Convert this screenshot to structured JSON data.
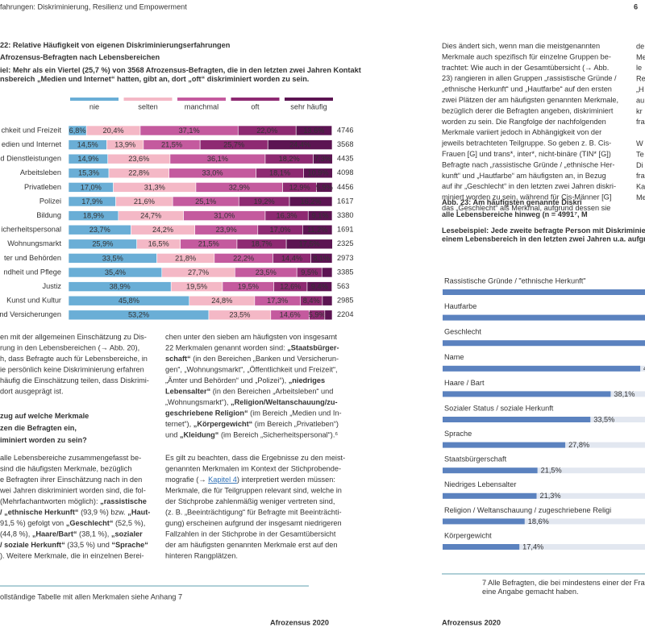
{
  "header": {
    "left": "fahrungen: Diskriminierung, Resilienz und Empowerment",
    "page": "6"
  },
  "figure22": {
    "type": "bar",
    "orientation": "horizontal",
    "stacked": true,
    "title_lines": [
      "22: Relative Häufigkeit von eigenen Diskriminierungserfahrungen",
      "Afrozensus-Befragten nach Lebensbereichen"
    ],
    "subtitle_lines": [
      "iel: Mehr als ein Viertel (25,7 %) von 3568 Afrozensus-Befragten, die in den letzten zwei Jahren Kontakt",
      "nsbereich „Medien und Internet“ hatten, gibt an, dort „oft“ diskriminiert worden zu sein."
    ],
    "categories": [
      "chkeit und Freizeit",
      "edien und Internet",
      "d Dienstleistungen",
      "Arbeitsleben",
      "Privatleben",
      "Polizei",
      "Bildung",
      "icherheitspersonal",
      "Wohnungsmarkt",
      "ter und Behörden",
      "ndheit und Pflege",
      "Justiz",
      "Kunst und Kultur",
      "nd Versicherungen"
    ],
    "n": [
      4746,
      3568,
      4435,
      4098,
      4456,
      1617,
      3380,
      1691,
      2325,
      2973,
      3385,
      563,
      2985,
      2204
    ],
    "series": [
      {
        "name": "nie",
        "color": "#6aaed6",
        "label_color": "#1d2f40",
        "values": [
          6.8,
          14.5,
          14.9,
          15.3,
          17.0,
          17.9,
          18.9,
          23.7,
          25.9,
          33.5,
          35.4,
          38.9,
          45.8,
          53.2
        ],
        "value_labels": [
          "6,8%",
          "14,5%",
          "14,9%",
          "15,3%",
          "17,0%",
          "17,9%",
          "18,9%",
          "23,7%",
          "25,9%",
          "33,5%",
          "35,4%",
          "38,9%",
          "45,8%",
          "53,2%"
        ]
      },
      {
        "name": "selten",
        "color": "#f4b8c6",
        "label_color": "#3a2030",
        "values": [
          20.4,
          13.9,
          23.6,
          22.8,
          31.3,
          21.6,
          24.7,
          24.2,
          16.5,
          21.8,
          27.7,
          19.5,
          24.8,
          23.5
        ],
        "value_labels": [
          "20,4%",
          "13,9%",
          "23,6%",
          "22,8%",
          "31,3%",
          "21,6%",
          "24,7%",
          "24,2%",
          "16,5%",
          "21,8%",
          "27,7%",
          "19,5%",
          "24,8%",
          "23,5%"
        ]
      },
      {
        "name": "manchmal",
        "color": "#c45a9e",
        "label_color": "#3a1030",
        "values": [
          37.1,
          21.5,
          36.1,
          33.0,
          32.9,
          25.1,
          31.0,
          23.9,
          21.5,
          22.2,
          23.5,
          19.5,
          17.3,
          14.6
        ],
        "value_labels": [
          "37,1%",
          "21,5%",
          "36,1%",
          "33,0%",
          "32,9%",
          "25,1%",
          "31,0%",
          "23,9%",
          "21,5%",
          "22,2%",
          "23,5%",
          "19,5%",
          "17,3%",
          "14,6%"
        ]
      },
      {
        "name": "oft",
        "color": "#8e2a72",
        "label_color": "#ffffff",
        "values": [
          22.0,
          25.7,
          18.2,
          18.1,
          12.9,
          19.2,
          16.3,
          17.0,
          18.7,
          14.4,
          9.5,
          12.6,
          8.4,
          5.9
        ],
        "value_labels": [
          "22,0%",
          "25,7%",
          "18,2%",
          "18,1%",
          "12,9%",
          "19,2%",
          "16,3%",
          "17,0%",
          "18,7%",
          "14,4%",
          "9,5%",
          "12,6%",
          "8,4%",
          "5,9%"
        ]
      },
      {
        "name": "sehr häufig",
        "color": "#5c1452",
        "label_color": "#ffffff",
        "values": [
          13.6,
          24.4,
          7.3,
          10.9,
          5.9,
          16.2,
          9.1,
          11.2,
          17.5,
          8.1,
          3.9,
          9.4,
          3.7,
          2.8
        ],
        "value_labels": [
          "13,6%",
          "24,4%",
          "7,3%",
          "10,9%",
          "5,9%",
          "16,2%",
          "9,1%",
          "11,2%",
          "17,5%",
          "8,1%",
          null,
          "9,4%",
          null,
          null
        ]
      }
    ]
  },
  "left_text": {
    "para1": [
      "en mit der allgemeinen Einschätzung zu Dis-",
      "rung in den Lebensbereichen (→ Abb. 20),",
      "h, dass Befragte auch für Lebensbereiche, in",
      "ie persönlich keine Diskriminierung erfahren",
      "häufig die Einschätzung teilen, dass Diskrimi-",
      "dort ausgeprägt ist."
    ],
    "heading": [
      "zug auf welche Merkmale",
      "zen die Befragten ein,",
      "iminiert worden zu sein?"
    ],
    "para2": [
      " alle Lebensbereiche zusammengefasst be-",
      " sind die häufigsten Merkmale, bezüglich",
      "e Befragten ihrer Einschätzung nach in den",
      "wei Jahren diskriminiert worden sind, die fol-",
      [
        "(Mehrfachantworten möglich): ",
        {
          "bold": "„rassistische"
        }
      ],
      [
        {
          "bold": "/ „ethnische Herkunft“"
        },
        " (93,9 %) bzw. ",
        {
          "bold": "„Haut-"
        }
      ],
      [
        "91,5 %) gefolgt von ",
        {
          "bold": "„Geschlecht“"
        },
        " (52,5 %),"
      ],
      [
        "(44,8 %), ",
        {
          "bold": "„Haare/Bart“"
        },
        " (38,1 %), ",
        {
          "bold": "„sozialer"
        }
      ],
      [
        {
          "bold": "/ soziale Herkunft“"
        },
        " (33,5 %) und ",
        {
          "bold": "“Sprache“"
        }
      ],
      "). Weitere Merkmale, die in einzelnen Berei-"
    ]
  },
  "middle_text": {
    "para1": [
      "chen unter den sieben am häufigsten von insgesamt",
      [
        "22 Merkmalen genannt worden sind: ",
        {
          "bold": "„Staatsbürger-"
        }
      ],
      [
        {
          "bold": "schaft“"
        },
        " (in den Bereichen „Banken und Versicherun-"
      ],
      "gen“, „Wohnungsmarkt“, „Öffentlichkeit und Freizeit“,",
      [
        "„Ämter und Behörden“ und „Polizei“), ",
        {
          "bold": "„niedriges"
        }
      ],
      [
        {
          "bold": "Lebensalter“"
        },
        " (in den Bereichen „Arbeitsleben“ und"
      ],
      [
        "„Wohnungsmarkt“), ",
        {
          "bold": "„Religion/Weltanschauung/zu-"
        }
      ],
      [
        {
          "bold": "geschriebene Religion“"
        },
        " (im Bereich „Medien und In-"
      ],
      [
        "ternet“), ",
        {
          "bold": "„Körpergewicht“"
        },
        " (im Bereich „Privatleben“)"
      ],
      [
        "und ",
        {
          "bold": "„Kleidung“"
        },
        " (im Bereich „Sicherheitspersonal“).⁶"
      ]
    ],
    "para2": [
      "Es gilt zu beachten, dass die Ergebnisse zu den meist-",
      "genannten Merkmalen im Kontext der Stichprobende-",
      [
        "mografie (→ ",
        {
          "link": "Kapitel 4"
        },
        ") interpretiert werden müssen:"
      ],
      "Merkmale, die für Teilgruppen relevant sind, welche in",
      "der Stichprobe zahlenmäßig weniger vertreten sind,",
      "(z. B. „Beeinträchtigung“ für Befragte mit Beeinträchti-",
      "gung) erscheinen aufgrund der insgesamt niedrigeren",
      "Fallzahlen in der Stichprobe in der Gesamtübersicht",
      "der am häufigsten genannten Merkmale erst auf den",
      "hinteren Rangplätzen."
    ]
  },
  "left_footnote": "ollständige Tabelle mit allen Merkmalen siehe Anhang 7",
  "right_text": [
    "Dies ändert sich, wenn man die meistgenannten",
    "Merkmale auch spezifisch für einzelne Gruppen be-",
    "trachtet: Wie auch in der Gesamtübersicht (→ Abb.",
    "23) rangieren in allen Gruppen „rassistische Gründe /",
    "„ethnische Herkunft“ und „Hautfarbe“ auf den ersten",
    "zwei Plätzen der am häufigsten genannten Merkmale,",
    "bezüglich derer die Befragten angeben, diskriminiert",
    "worden zu sein. Die Rangfolge der nachfolgenden",
    "Merkmale variiert jedoch in Abhängigkeit von der",
    "jeweils betrachteten Teilgruppe. So geben z. B. Cis-",
    "Frauen [G] und trans*, inter*, nicht-binäre (TIN* [G])",
    "Befragte nach „rassistische Gründe / „ethnische Her-",
    "kunft“ und „Hautfarbe“ am häufigsten an, in Bezug",
    "auf ihr „Geschlecht“ in den letzten zwei Jahren diskri-",
    "miniert worden zu sein, während für Cis-Männer [G]",
    "das „Geschlecht“ als Merkmal, aufgrund dessen sie"
  ],
  "right_edge_text": [
    "de",
    "Me",
    "le",
    "Re",
    "„H",
    "au",
    "kr",
    "fra",
    "",
    "W",
    "Te",
    "Di",
    "fra",
    "Ka",
    "Me"
  ],
  "figure23": {
    "type": "bar",
    "orientation": "horizontal",
    "title_lines": [
      "Abb. 23: Am häufigsten genannte Diskri",
      "alle Lebensbereiche hinweg (n = 4991⁷, M"
    ],
    "subtitle_lines": [
      "Lesebeispiel: Jede zweite befragte Person mit Diskriminierungserfahru",
      "einem Lebensbereich in den letzten zwei Jahren u.a. aufgrund ihres „G"
    ],
    "categories": [
      "Rassistische Gründe / \"ethnische Herkunft\"",
      "Hautfarbe",
      "Geschlecht",
      "Name",
      "Haare / Bart",
      "Sozialer Status / soziale Herkunft",
      "Sprache",
      "Staatsbürgerschaft",
      "Niedriges Lebensalter",
      "Religion / Weltanschauung / zugeschriebene Religi",
      "Körpergewicht"
    ],
    "values": [
      93.9,
      91.5,
      52.5,
      44.8,
      38.1,
      33.5,
      27.8,
      21.5,
      21.3,
      18.6,
      17.4
    ],
    "value_labels": [
      null,
      null,
      null,
      "44,8%",
      "38,1%",
      "33,5%",
      "27,8%",
      "21,5%",
      "21,3%",
      "18,6%",
      "17,4%"
    ],
    "color": "#5b82bf",
    "track_color": "#e2e7f0"
  },
  "right_footnote": [
    "7 Alle Befragten, die bei mindestens einer der Fragen zu Di",
    "eine Angabe gemacht haben."
  ],
  "footer": {
    "left": "Afrozensus 2020",
    "right": "Afrozensus 2020"
  }
}
